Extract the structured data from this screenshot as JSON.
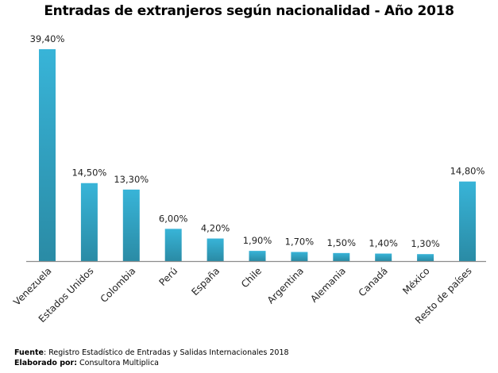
{
  "chart_data": {
    "type": "bar",
    "title": "Entradas de extranjeros según nacionalidad - Año 2018",
    "xlabel": "",
    "ylabel": "",
    "ylim": [
      0,
      40
    ],
    "grid": false,
    "categories": [
      "Venezuela",
      "Estados Unidos",
      "Colombia",
      "Perú",
      "España",
      "Chile",
      "Argentina",
      "Alemania",
      "Canadá",
      "México",
      "Resto de países"
    ],
    "values": [
      39.4,
      14.5,
      13.3,
      6.0,
      4.2,
      1.9,
      1.7,
      1.5,
      1.4,
      1.3,
      14.8
    ],
    "data_labels": [
      "39,40%",
      "14,50%",
      "13,30%",
      "6,00%",
      "4,20%",
      "1,90%",
      "1,70%",
      "1,50%",
      "1,40%",
      "1,30%",
      "14,80%"
    ],
    "bar_color_top": "#38b4d8",
    "bar_color_bottom": "#2a8ba5"
  },
  "footer": {
    "source_label": "Fuente",
    "source_text": ": Registro Estadístico de Entradas y Salidas Internacionales 2018",
    "author_label": "Elaborado  por:",
    "author_text": " Consultora Multiplica"
  }
}
